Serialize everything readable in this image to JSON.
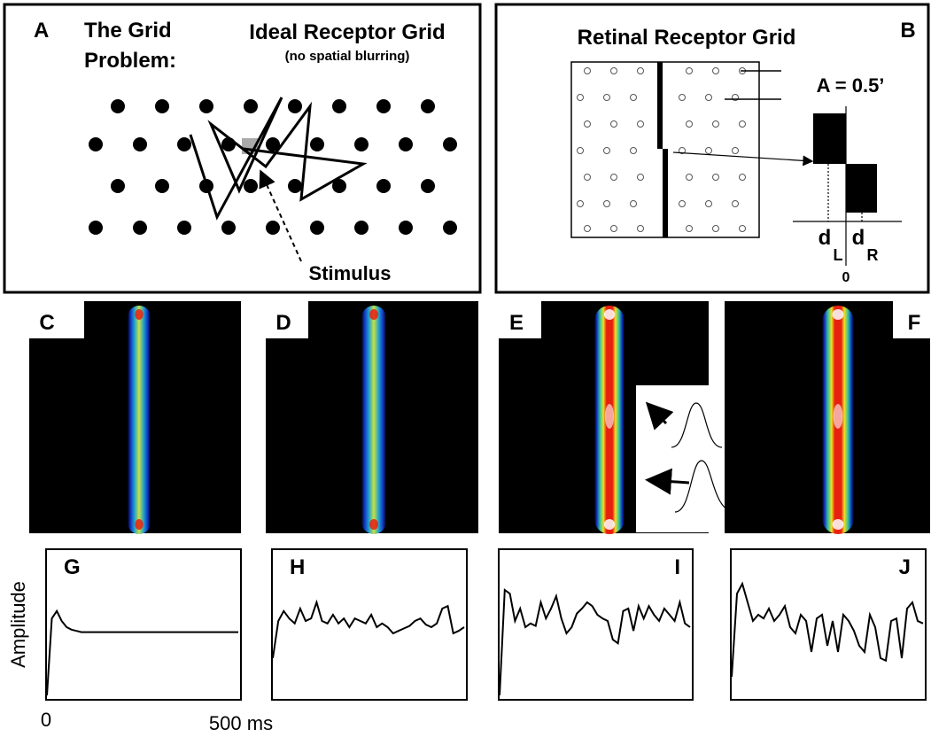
{
  "panel_a": {
    "label": "A",
    "title_lines": [
      "The Grid",
      "Problem:"
    ],
    "heading": "Ideal Receptor Grid",
    "subheading": "(no spatial blurring)",
    "stimulus_label": "Stimulus"
  },
  "panel_b": {
    "label": "B",
    "title": "Retinal Receptor Grid",
    "annotation": "A = 0.5’",
    "d_left": {
      "symbol": "d",
      "subscript": "L"
    },
    "d_right": {
      "symbol": "d",
      "subscript": "R"
    },
    "origin": "0"
  },
  "heatmaps": [
    {
      "label": "C"
    },
    {
      "label": "D"
    },
    {
      "label": "E"
    },
    {
      "label": "F"
    }
  ],
  "traces": [
    {
      "label": "G",
      "values": [
        0,
        0.62,
        0.68,
        0.6,
        0.55,
        0.53,
        0.52,
        0.51,
        0.51,
        0.51,
        0.51,
        0.51,
        0.51,
        0.51,
        0.51,
        0.51,
        0.51,
        0.51,
        0.51,
        0.51,
        0.51,
        0.51,
        0.51,
        0.51,
        0.51,
        0.51,
        0.51,
        0.51,
        0.51,
        0.51,
        0.51,
        0.51,
        0.51,
        0.51,
        0.51,
        0.51,
        0.51,
        0.51,
        0.51,
        0.51
      ]
    },
    {
      "label": "H",
      "values": [
        0.3,
        0.6,
        0.68,
        0.62,
        0.58,
        0.7,
        0.6,
        0.62,
        0.75,
        0.6,
        0.58,
        0.65,
        0.58,
        0.62,
        0.55,
        0.62,
        0.6,
        0.58,
        0.65,
        0.55,
        0.58,
        0.55,
        0.5,
        0.52,
        0.54,
        0.56,
        0.6,
        0.62,
        0.57,
        0.55,
        0.58,
        0.7,
        0.72,
        0.5,
        0.52,
        0.55
      ]
    },
    {
      "label": "I",
      "values": [
        0,
        0.85,
        0.82,
        0.6,
        0.7,
        0.55,
        0.58,
        0.56,
        0.75,
        0.62,
        0.7,
        0.8,
        0.62,
        0.5,
        0.55,
        0.66,
        0.7,
        0.75,
        0.72,
        0.65,
        0.62,
        0.6,
        0.45,
        0.42,
        0.68,
        0.7,
        0.52,
        0.72,
        0.62,
        0.72,
        0.65,
        0.6,
        0.7,
        0.65,
        0.6,
        0.75,
        0.58,
        0.55
      ]
    },
    {
      "label": "J",
      "values": [
        0.15,
        0.82,
        0.9,
        0.75,
        0.6,
        0.65,
        0.62,
        0.7,
        0.6,
        0.65,
        0.72,
        0.55,
        0.5,
        0.65,
        0.6,
        0.35,
        0.62,
        0.65,
        0.4,
        0.6,
        0.35,
        0.65,
        0.6,
        0.52,
        0.4,
        0.35,
        0.65,
        0.55,
        0.3,
        0.28,
        0.6,
        0.62,
        0.3,
        0.7,
        0.75,
        0.6,
        0.58
      ]
    }
  ],
  "y_axis_label": "Amplitude",
  "x_start": "0",
  "x_end": "500 ms"
}
